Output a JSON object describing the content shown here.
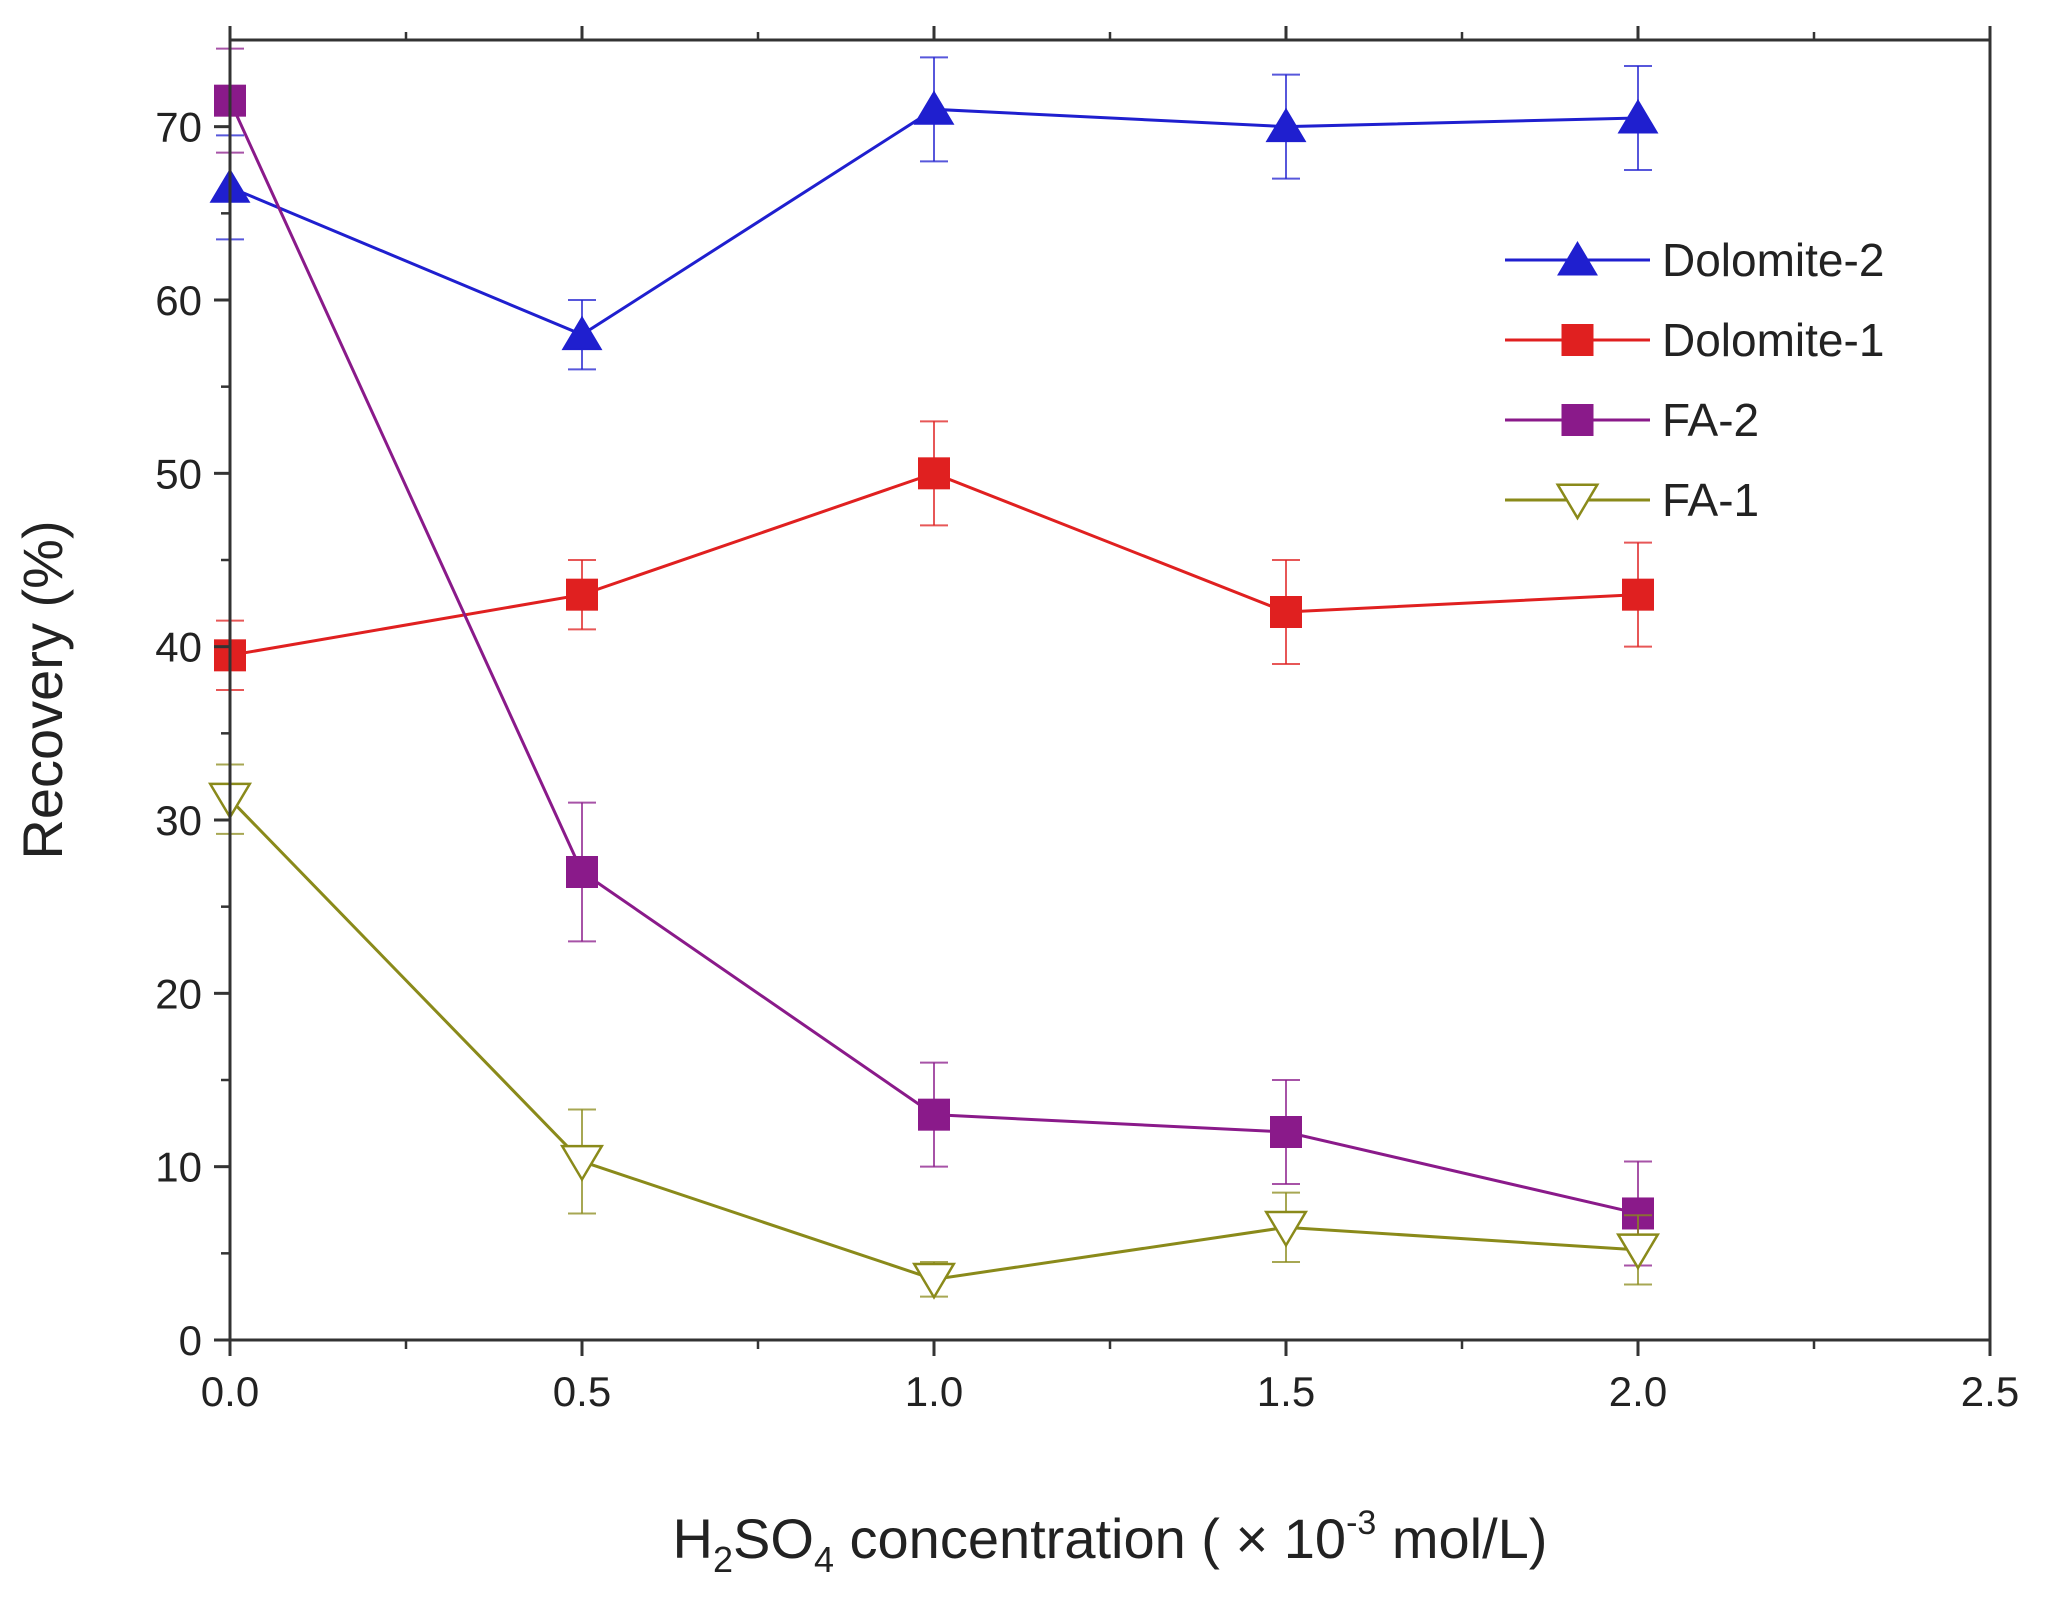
{
  "chart_data": {
    "type": "line",
    "title": "",
    "xlabel": {
      "prefix": "H",
      "sub1": "2",
      "mid": "SO",
      "sub2": "4",
      "post": " concentration ( × 10",
      "sup": "-3",
      "suffix": " mol/L)"
    },
    "ylabel": "Recovery (%)",
    "xlim": [
      0.0,
      2.5
    ],
    "ylim": [
      0,
      75
    ],
    "x_ticks": [
      "0.0",
      "0.5",
      "1.0",
      "1.5",
      "2.0",
      "2.5"
    ],
    "y_ticks": [
      "0",
      "10",
      "20",
      "30",
      "40",
      "50",
      "60",
      "70"
    ],
    "grid": false,
    "legend_position": "top-right",
    "x": [
      0.0,
      0.5,
      1.0,
      1.5,
      2.0
    ],
    "series": [
      {
        "name": "Dolomite-2",
        "color": "#1f1fcf",
        "marker": "triangle-up-filled",
        "values": [
          66.5,
          58,
          71,
          70,
          70.5
        ],
        "errors": [
          3,
          2,
          3,
          3,
          3
        ]
      },
      {
        "name": "Dolomite-1",
        "color": "#e02020",
        "marker": "square-filled",
        "values": [
          39.5,
          43,
          50,
          42,
          43
        ],
        "errors": [
          2,
          2,
          3,
          3,
          3
        ]
      },
      {
        "name": "FA-2",
        "color": "#8a1a8a",
        "marker": "square-filled",
        "values": [
          71.5,
          27,
          13,
          12,
          7.3
        ],
        "errors": [
          3,
          4,
          3,
          3,
          3
        ]
      },
      {
        "name": "FA-1",
        "color": "#8a8a1a",
        "marker": "triangle-down-open",
        "values": [
          31.2,
          10.3,
          3.5,
          6.5,
          5.2
        ],
        "errors": [
          2,
          3,
          1,
          2,
          2
        ]
      }
    ]
  }
}
